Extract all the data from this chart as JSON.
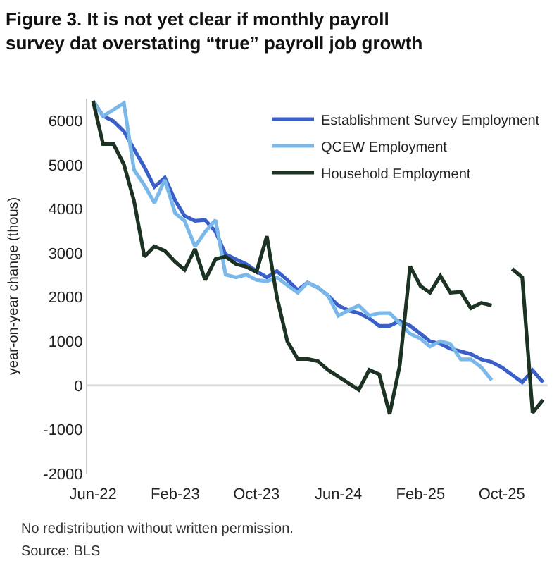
{
  "chart_data": {
    "type": "line",
    "title": "Figure 3. It is not yet clear if monthly payroll survey dat overstating “true” payroll job growth",
    "ylabel": "year-on-year change (thous)",
    "x": [
      "2022-06",
      "2022-07",
      "2022-08",
      "2022-09",
      "2022-10",
      "2022-11",
      "2022-12",
      "2023-01",
      "2023-02",
      "2023-03",
      "2023-04",
      "2023-05",
      "2023-06",
      "2023-07",
      "2023-08",
      "2023-09",
      "2023-10",
      "2023-11",
      "2023-12",
      "2024-01",
      "2024-02",
      "2024-03",
      "2024-04",
      "2024-05",
      "2024-06",
      "2024-07",
      "2024-08",
      "2024-09",
      "2024-10",
      "2024-11",
      "2024-12",
      "2025-01",
      "2025-02",
      "2025-03",
      "2025-04",
      "2025-05",
      "2025-06",
      "2025-07",
      "2025-08",
      "2025-09",
      "2025-10",
      "2025-11",
      "2025-12",
      "2026-01",
      "2026-02"
    ],
    "series": [
      {
        "name": "Establishment Survey Employment",
        "color": "#3a5fc8",
        "values": [
          6450,
          6110,
          5990,
          5760,
          5360,
          4950,
          4500,
          4710,
          4190,
          3840,
          3730,
          3750,
          3490,
          2970,
          2860,
          2750,
          2590,
          2450,
          2590,
          2390,
          2160,
          2330,
          2220,
          2040,
          1810,
          1700,
          1640,
          1520,
          1350,
          1350,
          1460,
          1350,
          1170,
          1000,
          940,
          830,
          770,
          710,
          590,
          530,
          410,
          240,
          70,
          340,
          70
        ]
      },
      {
        "name": "QCEW Employment",
        "color": "#7ab8ea",
        "values": [
          6450,
          6100,
          6250,
          6400,
          4890,
          4540,
          4140,
          4660,
          3900,
          3730,
          3150,
          3480,
          3750,
          2510,
          2450,
          2510,
          2390,
          2360,
          2450,
          2270,
          2100,
          2330,
          2220,
          2040,
          1580,
          1700,
          1810,
          1580,
          1640,
          1640,
          1410,
          1170,
          1060,
          880,
          1000,
          940,
          590,
          590,
          410,
          120,
          null,
          null,
          null,
          null,
          null
        ]
      },
      {
        "name": "Household Employment",
        "color": "#1c3324",
        "values": [
          6450,
          5470,
          5470,
          5010,
          4190,
          2920,
          3150,
          3050,
          2800,
          2620,
          3090,
          2390,
          2860,
          2920,
          2750,
          2690,
          2570,
          3380,
          2000,
          1000,
          600,
          600,
          550,
          350,
          200,
          50,
          -100,
          350,
          250,
          -650,
          450,
          2700,
          2250,
          2100,
          2480,
          2100,
          2120,
          1750,
          1870,
          1810,
          null,
          2640,
          2450,
          -620,
          -330
        ]
      }
    ],
    "xlim": [
      "2022-05-15",
      "2026-02-15"
    ],
    "xticks": [
      {
        "value": "2022-06",
        "label": "Jun-22"
      },
      {
        "value": "2023-02",
        "label": "Feb-23"
      },
      {
        "value": "2023-10",
        "label": "Oct-23"
      },
      {
        "value": "2024-06",
        "label": "Jun-24"
      },
      {
        "value": "2025-02",
        "label": "Feb-25"
      },
      {
        "value": "2025-10",
        "label": "Oct-25"
      }
    ],
    "ylim": [
      -2000,
      6500
    ],
    "yticks": [
      -2000,
      -1000,
      0,
      1000,
      2000,
      3000,
      4000,
      5000,
      6000
    ],
    "ref_lines": [
      {
        "axis": "y",
        "value": 0,
        "color": "#dddddd"
      }
    ],
    "grid": false,
    "legend": "top right",
    "marker": "none",
    "line_style": "solid",
    "annotations": [
      "No redistribution without written permission.",
      "Source: BLS"
    ]
  }
}
